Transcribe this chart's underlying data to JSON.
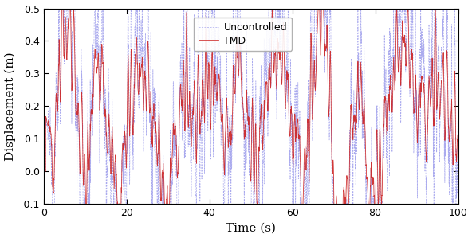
{
  "title": "",
  "xlabel": "Time (s)",
  "ylabel": "Displacement (m)",
  "xlim": [
    0,
    100
  ],
  "ylim": [
    -0.1,
    0.5
  ],
  "yticks": [
    -0.1,
    0.0,
    0.1,
    0.2,
    0.3,
    0.4,
    0.5
  ],
  "xticks": [
    0,
    20,
    40,
    60,
    80,
    100
  ],
  "uncontrolled_color": "#aaaaee",
  "tmd_color": "#cc2222",
  "legend_labels": [
    "Uncontrolled",
    "TMD"
  ],
  "seed": 42,
  "dt": 0.02,
  "duration": 100,
  "figsize": [
    5.92,
    2.99
  ],
  "dpi": 100
}
